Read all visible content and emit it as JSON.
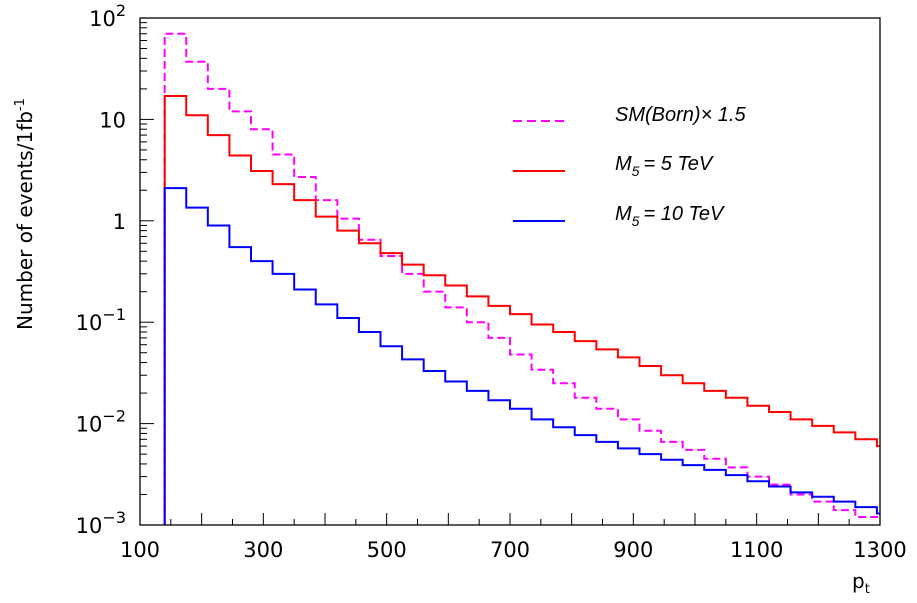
{
  "chart_data": {
    "type": "line",
    "style": "step-histogram",
    "ylabel": "Number of events/1fb",
    "ylabel_superscript": "-1",
    "xlabel": "p",
    "xlabel_subscript": "t",
    "xlim": [
      100,
      1300
    ],
    "ylim": [
      0.001,
      100
    ],
    "yscale": "log",
    "grid": false,
    "legend_position": "top-right",
    "x_ticks": [
      {
        "value": 100,
        "label": "100"
      },
      {
        "value": 300,
        "label": "300"
      },
      {
        "value": 500,
        "label": "500"
      },
      {
        "value": 700,
        "label": "700"
      },
      {
        "value": 900,
        "label": "900"
      },
      {
        "value": 1100,
        "label": "1100"
      },
      {
        "value": 1300,
        "label": "1300"
      }
    ],
    "y_ticks": [
      {
        "value": 100,
        "base": "10",
        "exp": "2"
      },
      {
        "value": 10,
        "base": "10",
        "exp": ""
      },
      {
        "value": 1,
        "base": "1",
        "exp": ""
      },
      {
        "value": 0.1,
        "base": "10",
        "exp": "−1"
      },
      {
        "value": 0.01,
        "base": "10",
        "exp": "−2"
      },
      {
        "value": 0.001,
        "base": "10",
        "exp": "−3"
      }
    ],
    "bin_edges": [
      140,
      175,
      210,
      245,
      280,
      315,
      350,
      385,
      420,
      455,
      490,
      525,
      560,
      595,
      630,
      665,
      700,
      735,
      770,
      805,
      840,
      875,
      910,
      945,
      980,
      1015,
      1050,
      1085,
      1120,
      1155,
      1190,
      1225,
      1260,
      1295,
      1300
    ],
    "series": [
      {
        "name": "SM(Born)× 1.5",
        "color": "#ff00ff",
        "dashed": true,
        "values": [
          70,
          37,
          20,
          12,
          8,
          4.5,
          2.7,
          1.6,
          1.05,
          0.65,
          0.45,
          0.3,
          0.2,
          0.14,
          0.1,
          0.07,
          0.048,
          0.034,
          0.025,
          0.018,
          0.014,
          0.011,
          0.0085,
          0.0066,
          0.0055,
          0.0045,
          0.0037,
          0.003,
          0.0025,
          0.002,
          0.0017,
          0.0014,
          0.0012,
          0.0012
        ]
      },
      {
        "name": "M",
        "subscript": "5",
        "name_suffix": "= 5 TeV",
        "color": "#ff0000",
        "dashed": false,
        "values": [
          17,
          11,
          7,
          4.4,
          3.1,
          2.3,
          1.6,
          1.1,
          0.8,
          0.6,
          0.48,
          0.37,
          0.29,
          0.23,
          0.18,
          0.145,
          0.12,
          0.095,
          0.08,
          0.065,
          0.054,
          0.045,
          0.037,
          0.03,
          0.025,
          0.021,
          0.018,
          0.015,
          0.013,
          0.011,
          0.0095,
          0.0082,
          0.007,
          0.006
        ]
      },
      {
        "name": "M",
        "subscript": "5",
        "name_suffix": "= 10 TeV",
        "color": "#0000ff",
        "dashed": false,
        "values": [
          2.1,
          1.35,
          0.9,
          0.55,
          0.4,
          0.3,
          0.21,
          0.15,
          0.11,
          0.08,
          0.058,
          0.043,
          0.033,
          0.026,
          0.021,
          0.017,
          0.014,
          0.011,
          0.0092,
          0.0077,
          0.0066,
          0.0057,
          0.005,
          0.0044,
          0.0039,
          0.0035,
          0.0031,
          0.0027,
          0.0024,
          0.0021,
          0.0019,
          0.0017,
          0.0015,
          0.0013
        ]
      }
    ]
  }
}
